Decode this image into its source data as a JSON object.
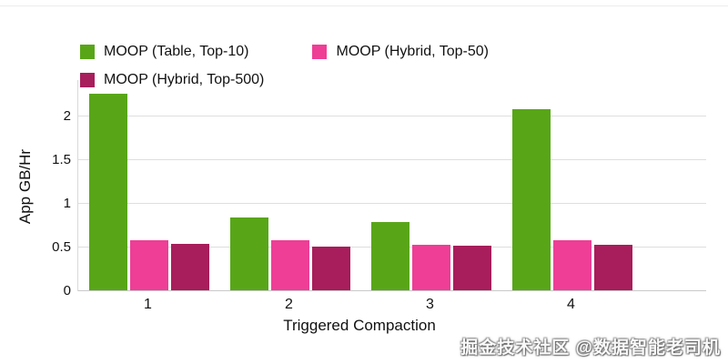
{
  "watermark": "掘金技术社区 @数据智能老司机",
  "chart_data": {
    "type": "bar",
    "title": "",
    "categories": [
      "1",
      "2",
      "3",
      "4"
    ],
    "series": [
      {
        "name": "MOOP (Table, Top-10)",
        "color": "#58a618",
        "values": [
          2.25,
          0.83,
          0.78,
          2.07
        ]
      },
      {
        "name": "MOOP (Hybrid, Top-50)",
        "color": "#ee3e96",
        "values": [
          0.57,
          0.57,
          0.52,
          0.57
        ]
      },
      {
        "name": "MOOP (Hybrid, Top-500)",
        "color": "#a81d5b",
        "values": [
          0.53,
          0.5,
          0.51,
          0.52
        ]
      }
    ],
    "xlabel": "Triggered Compaction",
    "ylabel": "App GB/Hr",
    "yticks": [
      0,
      0.5,
      1,
      1.5,
      2
    ],
    "ylim": [
      0,
      2.4
    ],
    "grid": true,
    "legend_position": "top"
  }
}
